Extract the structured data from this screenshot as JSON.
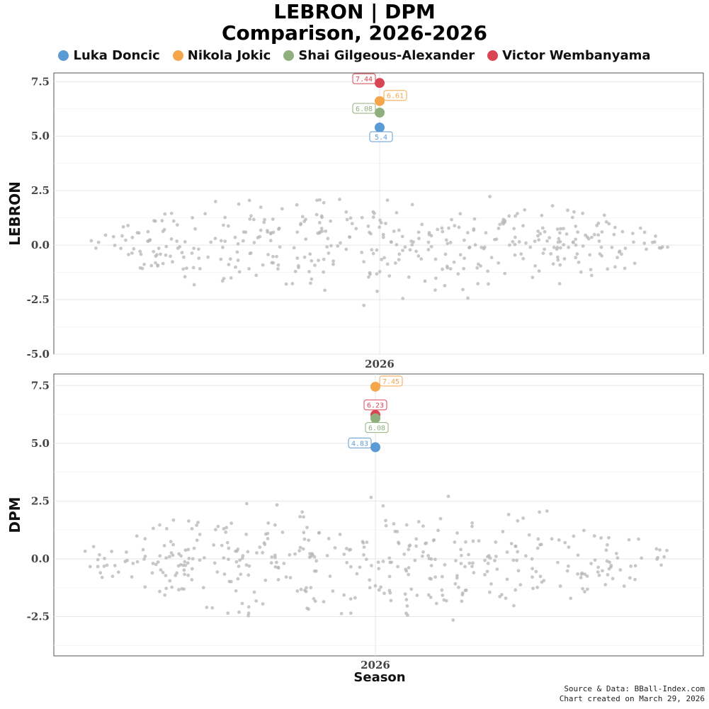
{
  "title_line1": "LEBRON | DPM",
  "title_line2": "Comparison, 2026-2026",
  "legend": [
    {
      "name": "Luka Doncic",
      "color": "#5b9bd5"
    },
    {
      "name": "Nikola Jokic",
      "color": "#f5a54a"
    },
    {
      "name": "Shai Gilgeous-Alexander",
      "color": "#8fb07e"
    },
    {
      "name": "Victor Wembanyama",
      "color": "#d94552"
    }
  ],
  "footer": {
    "source": "Source & Data: BBall-Index.com",
    "created": "Chart created on March 29, 2026"
  },
  "chart_data": [
    {
      "type": "scatter",
      "ylabel": "LEBRON",
      "xlabel": "",
      "categories": [
        "2026"
      ],
      "ylim": [
        -5.0,
        7.9
      ],
      "yticks": [
        7.5,
        5.0,
        2.5,
        0.0,
        -2.5,
        -5.0
      ],
      "ytick_labels": [
        "7.5",
        "5.0",
        "2.5",
        "0.0",
        "-2.5",
        "-5.0"
      ],
      "grid": true,
      "legend_position": "top",
      "highlighted": [
        {
          "name": "Victor Wembanyama",
          "value": 7.44,
          "label": "7.44",
          "color": "#d94552",
          "label_side": "left"
        },
        {
          "name": "Nikola Jokic",
          "value": 6.61,
          "label": "6.61",
          "color": "#f5a54a",
          "label_side": "right"
        },
        {
          "name": "Shai Gilgeous-Alexander",
          "value": 6.08,
          "label": "6.08",
          "color": "#8fb07e",
          "label_side": "left"
        },
        {
          "name": "Luka Doncic",
          "value": 5.4,
          "label": "5.4",
          "color": "#5b9bd5",
          "label_side": "below"
        }
      ]
    },
    {
      "type": "scatter",
      "ylabel": "DPM",
      "xlabel": "Season",
      "categories": [
        "2026"
      ],
      "ylim": [
        -4.2,
        8.0
      ],
      "yticks": [
        7.5,
        5.0,
        2.5,
        0.0,
        -2.5
      ],
      "ytick_labels": [
        "7.5",
        "5.0",
        "2.5",
        "0.0",
        "-2.5"
      ],
      "grid": true,
      "legend_position": "top",
      "highlighted": [
        {
          "name": "Nikola Jokic",
          "value": 7.45,
          "label": "7.45",
          "color": "#f5a54a",
          "label_side": "right"
        },
        {
          "name": "Victor Wembanyama",
          "value": 6.23,
          "label": "6.23",
          "color": "#d94552",
          "label_side": "above"
        },
        {
          "name": "Shai Gilgeous-Alexander",
          "value": 6.08,
          "label": "6.08",
          "color": "#8fb07e",
          "label_side": "below"
        },
        {
          "name": "Luka Doncic",
          "value": 4.83,
          "label": "4.83",
          "color": "#5b9bd5",
          "label_side": "left"
        }
      ]
    }
  ]
}
